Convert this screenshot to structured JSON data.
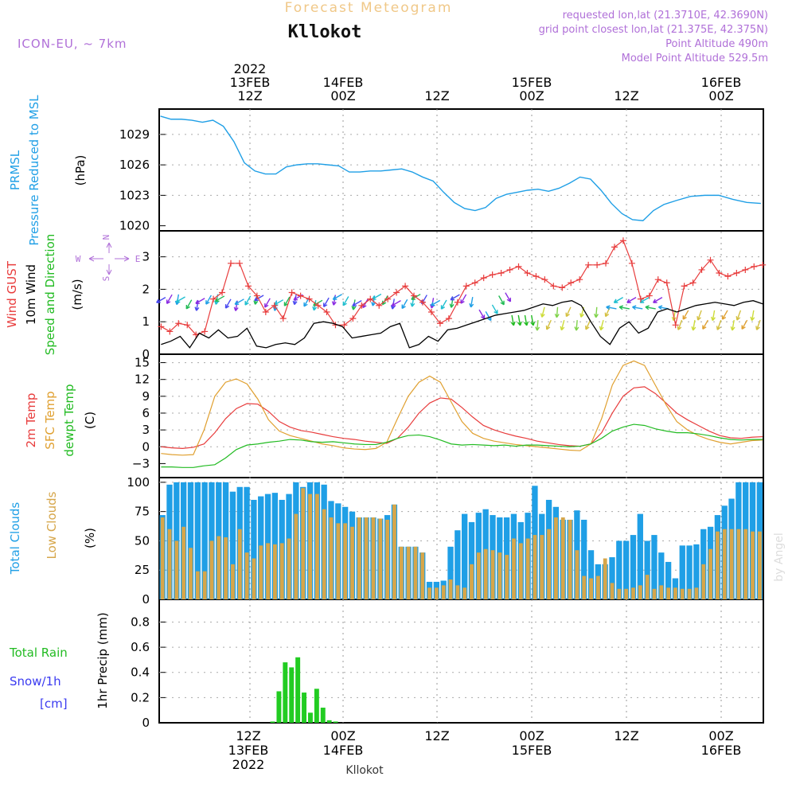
{
  "header": {
    "title": "Forecast Meteogram",
    "location": "Kllokot",
    "model": "ICON-EU, ~ 7km",
    "requested": "requested lon,lat (21.3710E, 42.3690N)",
    "grid_point": "grid point closest lon,lat (21.375E, 42.375N)",
    "point_altitude": "Point Altitude 490m",
    "model_altitude": "Model Point Altitude 529.5m",
    "footer_location": "Kllokot",
    "watermark": "by Angel"
  },
  "time_axis": {
    "top_labels": [
      {
        "line1": "2022",
        "line2": "13FEB",
        "line3": "12Z"
      },
      {
        "line1": "",
        "line2": "14FEB",
        "line3": "00Z"
      },
      {
        "line1": "",
        "line2": "",
        "line3": "12Z"
      },
      {
        "line1": "",
        "line2": "15FEB",
        "line3": "00Z"
      },
      {
        "line1": "",
        "line2": "",
        "line3": "12Z"
      },
      {
        "line1": "",
        "line2": "16FEB",
        "line3": "00Z"
      }
    ],
    "bottom_labels": [
      {
        "line1": "12Z",
        "line2": "13FEB",
        "line3": "2022"
      },
      {
        "line1": "00Z",
        "line2": "14FEB",
        "line3": ""
      },
      {
        "line1": "12Z",
        "line2": "",
        "line3": ""
      },
      {
        "line1": "00Z",
        "line2": "15FEB",
        "line3": ""
      },
      {
        "line1": "12Z",
        "line2": "",
        "line3": ""
      },
      {
        "line1": "00Z",
        "line2": "16FEB",
        "line3": ""
      }
    ]
  },
  "panels": {
    "pressure": {
      "labels": [
        "PRMSL",
        "Pressure Reduced to MSL"
      ],
      "unit": "(hPa)",
      "color": "#1f9fe6"
    },
    "wind": {
      "labels": [
        {
          "text": "Wind GUST",
          "color": "#e83c3c"
        },
        {
          "text": "10m Wind",
          "color": "#000000"
        },
        {
          "text": "Speed and Direction",
          "color": "#22bb22"
        }
      ],
      "unit": "(m/s)",
      "compass": {
        "n": "N",
        "s": "S",
        "w": "W",
        "e": "E"
      }
    },
    "temperature": {
      "labels": [
        {
          "text": "2m Temp",
          "color": "#e83c3c"
        },
        {
          "text": "SFC Temp",
          "color": "#e0a030"
        },
        {
          "text": "dewpt Temp",
          "color": "#22bb22"
        }
      ],
      "unit": "(C)"
    },
    "clouds": {
      "labels": [
        {
          "text": "Total Clouds",
          "color": "#1f9fe6"
        },
        {
          "text": "Low Clouds",
          "color": "#d6a64a"
        }
      ],
      "unit": "(%)"
    },
    "precip": {
      "label_rain": "Total  Rain",
      "label_snow": "Snow/1h",
      "label_snow_unit": "[cm]",
      "unit": "1hr Precip (mm)"
    }
  },
  "chart_data": [
    {
      "type": "line",
      "name": "pressure",
      "x_hours": [
        0,
        2,
        4,
        6,
        8,
        10,
        12,
        14,
        16,
        18,
        20,
        22,
        24,
        26,
        28,
        30,
        32,
        34,
        36,
        38,
        40,
        42,
        44,
        46,
        48,
        50,
        52,
        54,
        56,
        58,
        60,
        62,
        64,
        66,
        68,
        70,
        72,
        74,
        76,
        78,
        80,
        82,
        84,
        86,
        88,
        90,
        92,
        94,
        96
      ],
      "series": [
        {
          "name": "PRMSL",
          "values": [
            1030.8,
            1030.5,
            1030.5,
            1030.4,
            1030.2,
            1030.4,
            1029.8,
            1028.3,
            1026.2,
            1025.4,
            1025.1,
            1025.1,
            1025.8,
            1026.0,
            1026.1,
            1026.1,
            1026.0,
            1025.9,
            1025.3,
            1025.3,
            1025.4,
            1025.4,
            1025.5,
            1025.6,
            1025.3,
            1024.8,
            1024.4,
            1023.3,
            1022.3,
            1021.7,
            1021.5,
            1021.8,
            1022.7,
            1023.1,
            1023.3,
            1023.5,
            1023.6,
            1023.4,
            1023.7,
            1024.2,
            1024.8,
            1024.6,
            1023.5,
            1022.2,
            1021.2,
            1020.6,
            1020.5,
            1021.5,
            1022.1
          ]
        },
        {
          "name": "PRMSL-tail",
          "values": [
            1022.1,
            1022.5,
            1022.9,
            1023.0,
            1023.0,
            1022.6,
            1022.3,
            1022.2
          ]
        }
      ],
      "ylim": [
        1019.5,
        1031.5
      ],
      "yticks": [
        1020,
        1023,
        1026,
        1029
      ]
    },
    {
      "type": "line",
      "name": "wind",
      "ylim": [
        0,
        3.8
      ],
      "yticks": [
        0,
        1,
        2,
        3
      ],
      "series": [
        {
          "name": "Wind GUST",
          "values": [
            0.85,
            0.7,
            0.95,
            0.9,
            0.6,
            0.7,
            1.7,
            1.9,
            2.8,
            2.8,
            2.1,
            1.8,
            1.3,
            1.5,
            1.1,
            1.9,
            1.8,
            1.7,
            1.5,
            1.3,
            0.9,
            0.9,
            1.1,
            1.5,
            1.7,
            1.5,
            1.7,
            1.9,
            2.1,
            1.8,
            1.6,
            1.3,
            0.95,
            1.1,
            1.6,
            2.1,
            2.2,
            2.35,
            2.45,
            2.5,
            2.6,
            2.7,
            2.5,
            2.4,
            2.3,
            2.1,
            2.05,
            2.2,
            2.3,
            2.75,
            2.75,
            2.8,
            3.3,
            3.5,
            2.8,
            1.7,
            1.8,
            2.3,
            2.2,
            0.9,
            2.1,
            2.2,
            2.6,
            2.9,
            2.5,
            2.4,
            2.5,
            2.6,
            2.7,
            2.75
          ]
        },
        {
          "name": "10m Wind",
          "values": [
            0.3,
            0.4,
            0.55,
            0.2,
            0.65,
            0.5,
            0.75,
            0.5,
            0.55,
            0.8,
            0.25,
            0.2,
            0.3,
            0.35,
            0.3,
            0.5,
            0.95,
            1.0,
            0.95,
            0.85,
            0.5,
            0.55,
            0.6,
            0.65,
            0.85,
            0.95,
            0.2,
            0.3,
            0.55,
            0.4,
            0.75,
            0.8,
            0.9,
            1.0,
            1.1,
            1.2,
            1.25,
            1.3,
            1.35,
            1.45,
            1.55,
            1.5,
            1.6,
            1.65,
            1.5,
            1.0,
            0.55,
            0.3,
            0.8,
            1.0,
            0.65,
            0.8,
            1.3,
            1.4,
            1.3,
            1.4,
            1.5,
            1.55,
            1.6,
            1.55,
            1.5,
            1.6,
            1.65,
            1.55
          ]
        }
      ],
      "arrows_start_hour": 1
    },
    {
      "type": "line",
      "name": "temperature",
      "ylim": [
        -5.5,
        16.5
      ],
      "yticks": [
        -3,
        0,
        3,
        6,
        9,
        12,
        15
      ],
      "x_hours_step": 2,
      "series": [
        {
          "name": "2m Temp",
          "values": [
            0,
            -0.2,
            -0.3,
            -0.1,
            0.5,
            2.5,
            5,
            6.8,
            7.7,
            7.6,
            6.3,
            4.5,
            3.5,
            2.9,
            2.6,
            2.2,
            1.8,
            1.5,
            1.3,
            1.0,
            0.8,
            0.6,
            1.5,
            3.5,
            6,
            7.8,
            8.7,
            8.5,
            7,
            5.3,
            3.8,
            3.0,
            2.4,
            1.9,
            1.5,
            1.0,
            0.7,
            0.4,
            0.2,
            0.1,
            0.5,
            2.5,
            6,
            9,
            10.5,
            10.7,
            9.5,
            7.8,
            6,
            4.8,
            3.8,
            2.8,
            2.0,
            1.6,
            1.5,
            1.7,
            1.8
          ]
        },
        {
          "name": "SFC Temp",
          "values": [
            -1.2,
            -1.4,
            -1.5,
            -1.4,
            3,
            9,
            11.5,
            12.1,
            11.2,
            8.5,
            4.8,
            2.8,
            2.0,
            1.5,
            1.0,
            0.5,
            0.2,
            -0.2,
            -0.4,
            -0.5,
            -0.3,
            0.8,
            5,
            9,
            11.5,
            12.6,
            11.5,
            8,
            4.5,
            2.4,
            1.5,
            1.0,
            0.7,
            0.4,
            0.2,
            0.0,
            -0.2,
            -0.4,
            -0.6,
            -0.7,
            0.5,
            5,
            11,
            14.5,
            15.3,
            14.5,
            11,
            7.5,
            4.5,
            3.0,
            2.0,
            1.3,
            0.8,
            0.5,
            0.8,
            1.1,
            1.2
          ]
        },
        {
          "name": "dewpt Temp",
          "values": [
            -3.6,
            -3.6,
            -3.7,
            -3.7,
            -3.4,
            -3.2,
            -2,
            -0.5,
            0.3,
            0.5,
            0.8,
            1.0,
            1.3,
            1.2,
            0.9,
            0.8,
            0.9,
            0.7,
            0.5,
            0.4,
            0.4,
            0.8,
            1.5,
            2.0,
            2.1,
            1.8,
            1.2,
            0.5,
            0.3,
            0.4,
            0.3,
            0.2,
            0.3,
            0.1,
            0.3,
            0.3,
            0.2,
            0.1,
            0.0,
            0.1,
            0.5,
            1.5,
            2.8,
            3.5,
            4.0,
            3.8,
            3.2,
            2.8,
            2.5,
            2.5,
            2.3,
            2.0,
            1.6,
            1.3,
            1.2,
            1.3,
            1.3
          ]
        }
      ]
    },
    {
      "type": "bar",
      "name": "clouds",
      "ylim": [
        0,
        104
      ],
      "yticks": [
        0,
        25,
        50,
        75,
        100
      ],
      "series": [
        {
          "name": "Total Clouds",
          "values": [
            72,
            98,
            100,
            100,
            100,
            100,
            100,
            100,
            100,
            100,
            92,
            96,
            96,
            85,
            88,
            90,
            91,
            85,
            90,
            100,
            96,
            100,
            100,
            98,
            84,
            82,
            79,
            75,
            70,
            70,
            70,
            69,
            72,
            81,
            45,
            45,
            45,
            40,
            15,
            15,
            16,
            45,
            59,
            73,
            66,
            74,
            77,
            72,
            70,
            70,
            73,
            66,
            74,
            97,
            73,
            85,
            79,
            68,
            68,
            76,
            68,
            42,
            30,
            30,
            36,
            50,
            50,
            55,
            73,
            50,
            55,
            40,
            32,
            18,
            46,
            46,
            47,
            60,
            62,
            72,
            80,
            86,
            100,
            100,
            100,
            100
          ]
        },
        {
          "name": "Low Clouds",
          "values": [
            70,
            60,
            50,
            62,
            44,
            24,
            24,
            50,
            54,
            53,
            30,
            60,
            40,
            35,
            46,
            48,
            47,
            48,
            52,
            73,
            95,
            90,
            90,
            77,
            70,
            65,
            65,
            62,
            70,
            70,
            70,
            69,
            68,
            81,
            45,
            45,
            45,
            40,
            10,
            10,
            12,
            17,
            12,
            10,
            30,
            40,
            43,
            42,
            40,
            38,
            52,
            48,
            52,
            55,
            55,
            60,
            70,
            70,
            68,
            42,
            20,
            18,
            20,
            35,
            14,
            9,
            9,
            10,
            12,
            21,
            9,
            12,
            10,
            10,
            9,
            9,
            10,
            30,
            43,
            58,
            60,
            60,
            60,
            60,
            58,
            58
          ]
        }
      ]
    },
    {
      "type": "bar",
      "name": "precip",
      "ylim": [
        0,
        0.98
      ],
      "yticks": [
        0,
        0.2,
        0.4,
        0.6,
        0.8
      ],
      "series": [
        {
          "name": "Total Rain",
          "start_hour": 18,
          "values": [
            0.01,
            0.25,
            0.48,
            0.44,
            0.52,
            0.24,
            0.08,
            0.27,
            0.12,
            0.02,
            0.01
          ]
        }
      ]
    }
  ]
}
